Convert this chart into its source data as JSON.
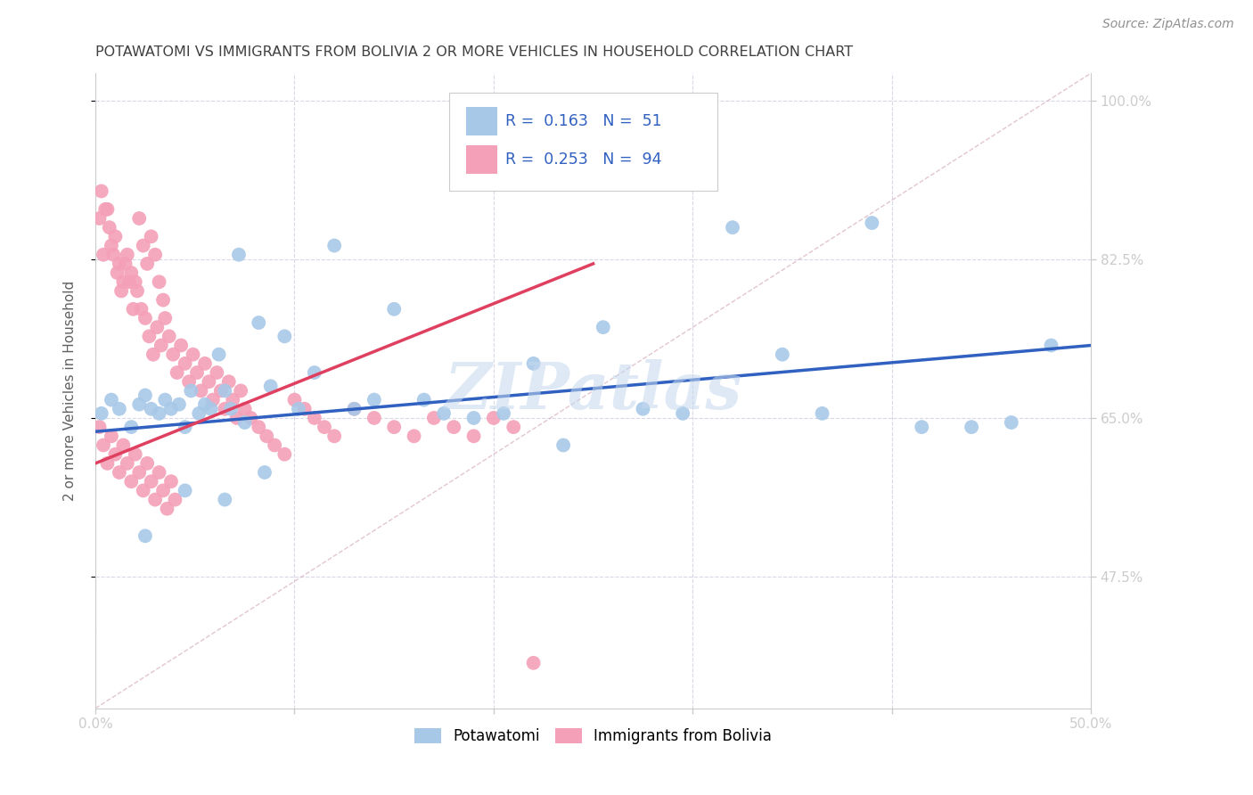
{
  "title": "POTAWATOMI VS IMMIGRANTS FROM BOLIVIA 2 OR MORE VEHICLES IN HOUSEHOLD CORRELATION CHART",
  "source": "Source: ZipAtlas.com",
  "ylabel": "2 or more Vehicles in Household",
  "xlim": [
    0.0,
    0.5
  ],
  "ylim": [
    0.33,
    1.03
  ],
  "y_ticks": [
    0.475,
    0.65,
    0.825,
    1.0
  ],
  "y_tick_labels": [
    "47.5%",
    "65.0%",
    "82.5%",
    "100.0%"
  ],
  "blue_color": "#a8c8e8",
  "pink_color": "#f4a0b8",
  "blue_line_color": "#3060c0",
  "pink_line_color": "#e04060",
  "title_color": "#404040",
  "source_color": "#808080",
  "grid_color": "#d8d8e8",
  "watermark": "ZIPatlas",
  "background_color": "#ffffff",
  "blue_scatter_x": [
    0.003,
    0.008,
    0.012,
    0.018,
    0.022,
    0.025,
    0.028,
    0.032,
    0.035,
    0.038,
    0.042,
    0.045,
    0.048,
    0.052,
    0.055,
    0.058,
    0.062,
    0.065,
    0.068,
    0.072,
    0.075,
    0.082,
    0.088,
    0.095,
    0.102,
    0.11,
    0.12,
    0.13,
    0.14,
    0.15,
    0.165,
    0.175,
    0.19,
    0.205,
    0.22,
    0.235,
    0.255,
    0.275,
    0.295,
    0.32,
    0.345,
    0.365,
    0.39,
    0.415,
    0.44,
    0.46,
    0.48,
    0.025,
    0.045,
    0.065,
    0.085
  ],
  "blue_scatter_y": [
    0.655,
    0.67,
    0.66,
    0.64,
    0.665,
    0.675,
    0.66,
    0.655,
    0.67,
    0.66,
    0.665,
    0.64,
    0.68,
    0.655,
    0.665,
    0.66,
    0.72,
    0.68,
    0.66,
    0.83,
    0.645,
    0.755,
    0.685,
    0.74,
    0.66,
    0.7,
    0.84,
    0.66,
    0.67,
    0.77,
    0.67,
    0.655,
    0.65,
    0.655,
    0.71,
    0.62,
    0.75,
    0.66,
    0.655,
    0.86,
    0.72,
    0.655,
    0.865,
    0.64,
    0.64,
    0.645,
    0.73,
    0.52,
    0.57,
    0.56,
    0.59
  ],
  "pink_scatter_x": [
    0.002,
    0.004,
    0.006,
    0.008,
    0.01,
    0.012,
    0.014,
    0.016,
    0.018,
    0.02,
    0.022,
    0.024,
    0.026,
    0.028,
    0.03,
    0.032,
    0.034,
    0.003,
    0.005,
    0.007,
    0.009,
    0.011,
    0.013,
    0.015,
    0.017,
    0.019,
    0.021,
    0.023,
    0.025,
    0.027,
    0.029,
    0.031,
    0.033,
    0.035,
    0.037,
    0.039,
    0.041,
    0.043,
    0.045,
    0.047,
    0.049,
    0.051,
    0.053,
    0.055,
    0.057,
    0.059,
    0.061,
    0.063,
    0.065,
    0.067,
    0.069,
    0.071,
    0.073,
    0.075,
    0.078,
    0.082,
    0.086,
    0.09,
    0.095,
    0.1,
    0.105,
    0.11,
    0.115,
    0.12,
    0.13,
    0.14,
    0.15,
    0.16,
    0.17,
    0.18,
    0.19,
    0.2,
    0.21,
    0.22,
    0.002,
    0.004,
    0.006,
    0.008,
    0.01,
    0.012,
    0.014,
    0.016,
    0.018,
    0.02,
    0.022,
    0.024,
    0.026,
    0.028,
    0.03,
    0.032,
    0.034,
    0.036,
    0.038,
    0.04
  ],
  "pink_scatter_y": [
    0.87,
    0.83,
    0.88,
    0.84,
    0.85,
    0.82,
    0.8,
    0.83,
    0.81,
    0.8,
    0.87,
    0.84,
    0.82,
    0.85,
    0.83,
    0.8,
    0.78,
    0.9,
    0.88,
    0.86,
    0.83,
    0.81,
    0.79,
    0.82,
    0.8,
    0.77,
    0.79,
    0.77,
    0.76,
    0.74,
    0.72,
    0.75,
    0.73,
    0.76,
    0.74,
    0.72,
    0.7,
    0.73,
    0.71,
    0.69,
    0.72,
    0.7,
    0.68,
    0.71,
    0.69,
    0.67,
    0.7,
    0.68,
    0.66,
    0.69,
    0.67,
    0.65,
    0.68,
    0.66,
    0.65,
    0.64,
    0.63,
    0.62,
    0.61,
    0.67,
    0.66,
    0.65,
    0.64,
    0.63,
    0.66,
    0.65,
    0.64,
    0.63,
    0.65,
    0.64,
    0.63,
    0.65,
    0.64,
    0.38,
    0.64,
    0.62,
    0.6,
    0.63,
    0.61,
    0.59,
    0.62,
    0.6,
    0.58,
    0.61,
    0.59,
    0.57,
    0.6,
    0.58,
    0.56,
    0.59,
    0.57,
    0.55,
    0.58,
    0.56
  ],
  "blue_trend": [
    0.0,
    0.5,
    0.635,
    0.73
  ],
  "pink_trend": [
    0.0,
    0.25,
    0.6,
    0.82
  ],
  "diag_line": [
    0.0,
    0.5,
    0.33,
    1.03
  ]
}
